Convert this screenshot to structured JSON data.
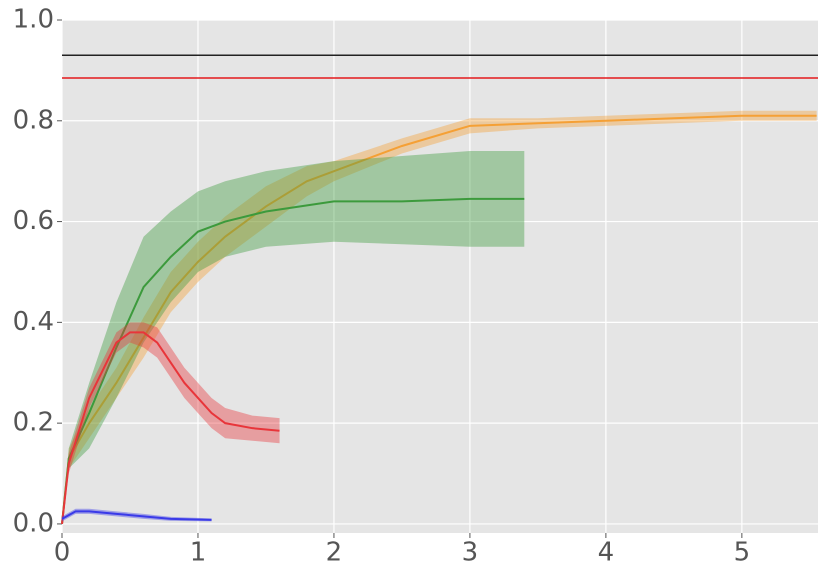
{
  "chart_data": {
    "type": "line",
    "xlim": [
      0,
      5.56
    ],
    "ylim": [
      -0.018,
      1.0
    ],
    "xticks": [
      0,
      1,
      2,
      3,
      4,
      5
    ],
    "yticks": [
      {
        "value": 0,
        "label": "0.0"
      },
      {
        "value": 0.2,
        "label": "0.2"
      },
      {
        "value": 0.4,
        "label": "0.4"
      },
      {
        "value": 0.6,
        "label": "0.6"
      },
      {
        "value": 0.8,
        "label": "0.8"
      },
      {
        "value": 1,
        "label": "1.0"
      }
    ],
    "grid": true,
    "background": "#e5e5e5",
    "hlines": [
      {
        "y": 0.93,
        "color": "#222222"
      },
      {
        "y": 0.885,
        "color": "#e41a1c"
      }
    ],
    "series": [
      {
        "color": "#f5a035",
        "x": [
          0,
          0.05,
          0.2,
          0.4,
          0.6,
          0.8,
          1.0,
          1.2,
          1.5,
          1.8,
          2.0,
          2.5,
          3.0,
          3.5,
          4.0,
          4.5,
          5.0,
          5.55
        ],
        "values": [
          0,
          0.13,
          0.2,
          0.28,
          0.37,
          0.46,
          0.52,
          0.57,
          0.63,
          0.68,
          0.7,
          0.75,
          0.79,
          0.795,
          0.8,
          0.805,
          0.81,
          0.81
        ],
        "lower": [
          0,
          0.11,
          0.17,
          0.25,
          0.33,
          0.42,
          0.48,
          0.53,
          0.59,
          0.65,
          0.68,
          0.735,
          0.775,
          0.785,
          0.79,
          0.795,
          0.8,
          0.8
        ],
        "upper": [
          0,
          0.15,
          0.23,
          0.31,
          0.41,
          0.5,
          0.56,
          0.61,
          0.67,
          0.71,
          0.72,
          0.765,
          0.805,
          0.805,
          0.81,
          0.815,
          0.82,
          0.82
        ]
      },
      {
        "color": "#3c9a3c",
        "x": [
          0,
          0.05,
          0.2,
          0.4,
          0.6,
          0.8,
          1.0,
          1.2,
          1.5,
          2.0,
          2.5,
          3.0,
          3.4
        ],
        "values": [
          0,
          0.13,
          0.22,
          0.35,
          0.47,
          0.53,
          0.58,
          0.6,
          0.62,
          0.64,
          0.64,
          0.645,
          0.645
        ],
        "lower": [
          0,
          0.11,
          0.15,
          0.25,
          0.36,
          0.44,
          0.5,
          0.53,
          0.55,
          0.56,
          0.555,
          0.55,
          0.55
        ],
        "upper": [
          0,
          0.15,
          0.28,
          0.44,
          0.57,
          0.62,
          0.66,
          0.68,
          0.7,
          0.72,
          0.73,
          0.74,
          0.74
        ]
      },
      {
        "color": "#e8353a",
        "x": [
          0,
          0.05,
          0.2,
          0.4,
          0.5,
          0.6,
          0.7,
          0.8,
          0.9,
          1.0,
          1.1,
          1.2,
          1.4,
          1.6
        ],
        "values": [
          0,
          0.12,
          0.25,
          0.36,
          0.38,
          0.38,
          0.36,
          0.32,
          0.28,
          0.25,
          0.22,
          0.2,
          0.19,
          0.185
        ],
        "lower": [
          0,
          0.1,
          0.23,
          0.34,
          0.36,
          0.35,
          0.33,
          0.29,
          0.25,
          0.22,
          0.19,
          0.17,
          0.165,
          0.16
        ],
        "upper": [
          0,
          0.14,
          0.27,
          0.38,
          0.4,
          0.4,
          0.39,
          0.35,
          0.31,
          0.28,
          0.25,
          0.23,
          0.215,
          0.21
        ]
      },
      {
        "color": "#3a3ae8",
        "x": [
          0,
          0.1,
          0.2,
          0.4,
          0.6,
          0.8,
          1.1
        ],
        "values": [
          0.01,
          0.025,
          0.025,
          0.02,
          0.015,
          0.01,
          0.008
        ],
        "lower": [
          0.005,
          0.02,
          0.02,
          0.015,
          0.01,
          0.006,
          0.005
        ],
        "upper": [
          0.015,
          0.03,
          0.03,
          0.025,
          0.02,
          0.014,
          0.011
        ]
      }
    ]
  }
}
